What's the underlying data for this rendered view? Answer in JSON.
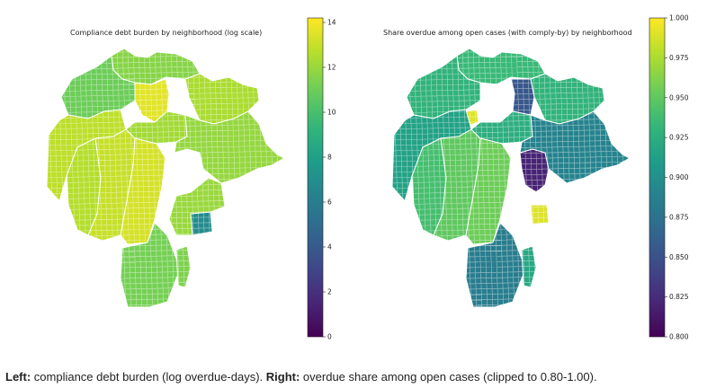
{
  "left_panel": {
    "title": "Compliance debt burden by neighborhood (log scale)",
    "colorbar": {
      "min": 0,
      "max": 14.2,
      "ticks": [
        "0",
        "2",
        "4",
        "6",
        "8",
        "10",
        "12",
        "14"
      ],
      "tick_values": [
        0,
        2,
        4,
        6,
        8,
        10,
        12,
        14
      ]
    },
    "colormap": "viridis",
    "regions": [
      {
        "id": "north-top",
        "value": 11.6
      },
      {
        "id": "north-center-yellow",
        "value": 13.6
      },
      {
        "id": "northwest-large",
        "value": 11.0
      },
      {
        "id": "west",
        "value": 12.8
      },
      {
        "id": "southwest",
        "value": 12.6
      },
      {
        "id": "center-west",
        "value": 13.0
      },
      {
        "id": "downtown",
        "value": 12.2
      },
      {
        "id": "center-south",
        "value": 13.3
      },
      {
        "id": "northeast",
        "value": 12.4
      },
      {
        "id": "east",
        "value": 11.9
      },
      {
        "id": "southeast-teal",
        "value": 6.8
      },
      {
        "id": "southeast-small",
        "value": 12.0
      },
      {
        "id": "south-large",
        "value": 11.2
      },
      {
        "id": "south-tip",
        "value": 11.4
      }
    ]
  },
  "right_panel": {
    "title": "Share overdue among open cases (with comply-by) by neighborhood",
    "colorbar": {
      "min": 0.8,
      "max": 1.0,
      "ticks": [
        "0.800",
        "0.825",
        "0.850",
        "0.875",
        "0.900",
        "0.925",
        "0.950",
        "0.975",
        "1.000"
      ],
      "tick_values": [
        0.8,
        0.825,
        0.85,
        0.875,
        0.9,
        0.925,
        0.95,
        0.975,
        1.0
      ]
    },
    "colormap": "viridis",
    "regions": [
      {
        "id": "north-top",
        "value": 0.935
      },
      {
        "id": "north-center-purple",
        "value": 0.855
      },
      {
        "id": "north-yellow-small",
        "value": 0.99
      },
      {
        "id": "northwest-large",
        "value": 0.93
      },
      {
        "id": "west",
        "value": 0.915
      },
      {
        "id": "southwest",
        "value": 0.94
      },
      {
        "id": "center-west",
        "value": 0.95
      },
      {
        "id": "downtown",
        "value": 0.925
      },
      {
        "id": "center-south",
        "value": 0.955
      },
      {
        "id": "northeast",
        "value": 0.93
      },
      {
        "id": "east-purple",
        "value": 0.82
      },
      {
        "id": "east",
        "value": 0.89
      },
      {
        "id": "southeast-yellow",
        "value": 0.99
      },
      {
        "id": "south-large",
        "value": 0.885
      },
      {
        "id": "south-tip",
        "value": 0.92
      }
    ]
  },
  "caption": {
    "left_bold": "Left:",
    "left_text": " compliance debt burden (log overdue-days). ",
    "right_bold": "Right:",
    "right_text": " overdue share among open cases (clipped to 0.80-1.00)."
  }
}
